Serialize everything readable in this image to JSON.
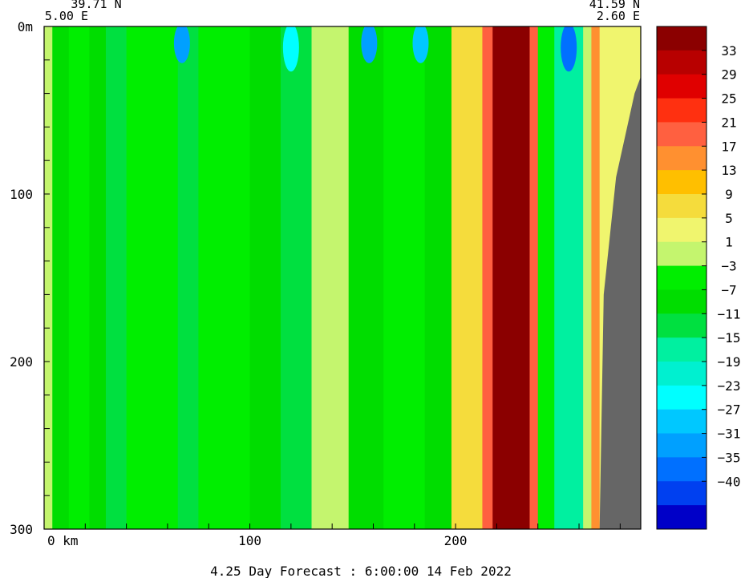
{
  "chart_data": {
    "type": "heatmap",
    "title": "",
    "corner_left": {
      "lat": "39.71 N",
      "lon": "5.00 E"
    },
    "corner_right": {
      "lat": "41.59 N",
      "lon": "2.60 E"
    },
    "xlabel": "",
    "x_unit": "km",
    "xlim": [
      0,
      290
    ],
    "x_ticks": [
      0,
      100,
      200
    ],
    "ylabel": "",
    "y_unit": "m",
    "ylim": [
      0,
      300
    ],
    "y_ticks": [
      0,
      100,
      200,
      300
    ],
    "forecast_caption": "4.25 Day Forecast :  6:00:00  14 Feb 2022",
    "colorbar": {
      "tick_labels": [
        "33",
        "29",
        "25",
        "21",
        "17",
        "13",
        "9",
        "5",
        "1",
        "−3",
        "−7",
        "−11",
        "−15",
        "−19",
        "−23",
        "−27",
        "−31",
        "−35",
        "−40"
      ],
      "colors_top_to_bottom": [
        "#8b0000",
        "#b80000",
        "#e00000",
        "#ff3010",
        "#ff6040",
        "#ff9030",
        "#ffbf00",
        "#f5dc3c",
        "#f0f56e",
        "#c4f56e",
        "#00ee00",
        "#00dd00",
        "#00e040",
        "#00f0a0",
        "#00f0d0",
        "#00ffff",
        "#00c8ff",
        "#00a0ff",
        "#0070ff",
        "#0040f0",
        "#0000c8"
      ]
    },
    "land_color": "#666666",
    "columns": [
      {
        "x": [
          0,
          4
        ],
        "value": 0
      },
      {
        "x": [
          4,
          12
        ],
        "value": -10
      },
      {
        "x": [
          12,
          22
        ],
        "value": -4
      },
      {
        "x": [
          22,
          30
        ],
        "value": -8
      },
      {
        "x": [
          30,
          40
        ],
        "value": -14
      },
      {
        "x": [
          40,
          55
        ],
        "value": -6
      },
      {
        "x": [
          55,
          65
        ],
        "value": -4
      },
      {
        "x": [
          65,
          75
        ],
        "value": -12
      },
      {
        "x": [
          75,
          88
        ],
        "value": -6
      },
      {
        "x": [
          88,
          100
        ],
        "value": -4
      },
      {
        "x": [
          100,
          115
        ],
        "value": -8
      },
      {
        "x": [
          115,
          130
        ],
        "value": -14
      },
      {
        "x": [
          130,
          148
        ],
        "value": -2
      },
      {
        "x": [
          148,
          165
        ],
        "value": -10
      },
      {
        "x": [
          165,
          185
        ],
        "value": -6
      },
      {
        "x": [
          185,
          198
        ],
        "value": -9
      },
      {
        "x": [
          198,
          205
        ],
        "value": 6
      },
      {
        "x": [
          205,
          213
        ],
        "value": 9
      },
      {
        "x": [
          213,
          218
        ],
        "value": 20
      },
      {
        "x": [
          218,
          236
        ],
        "value": 35
      },
      {
        "x": [
          236,
          240
        ],
        "value": 18
      },
      {
        "x": [
          240,
          248
        ],
        "value": -6
      },
      {
        "x": [
          248,
          262
        ],
        "value": -18
      },
      {
        "x": [
          262,
          266
        ],
        "value": 0
      },
      {
        "x": [
          266,
          270
        ],
        "value": 14
      },
      {
        "x": [
          270,
          290
        ],
        "value": 2
      }
    ],
    "surface_spots": [
      {
        "x": 67,
        "depth": [
          0,
          20
        ],
        "value": -31
      },
      {
        "x": 120,
        "depth": [
          0,
          25
        ],
        "value": -25
      },
      {
        "x": 158,
        "depth": [
          0,
          20
        ],
        "value": -33
      },
      {
        "x": 183,
        "depth": [
          0,
          20
        ],
        "value": -27
      },
      {
        "x": 255,
        "depth": [
          0,
          25
        ],
        "value": -37
      }
    ]
  }
}
